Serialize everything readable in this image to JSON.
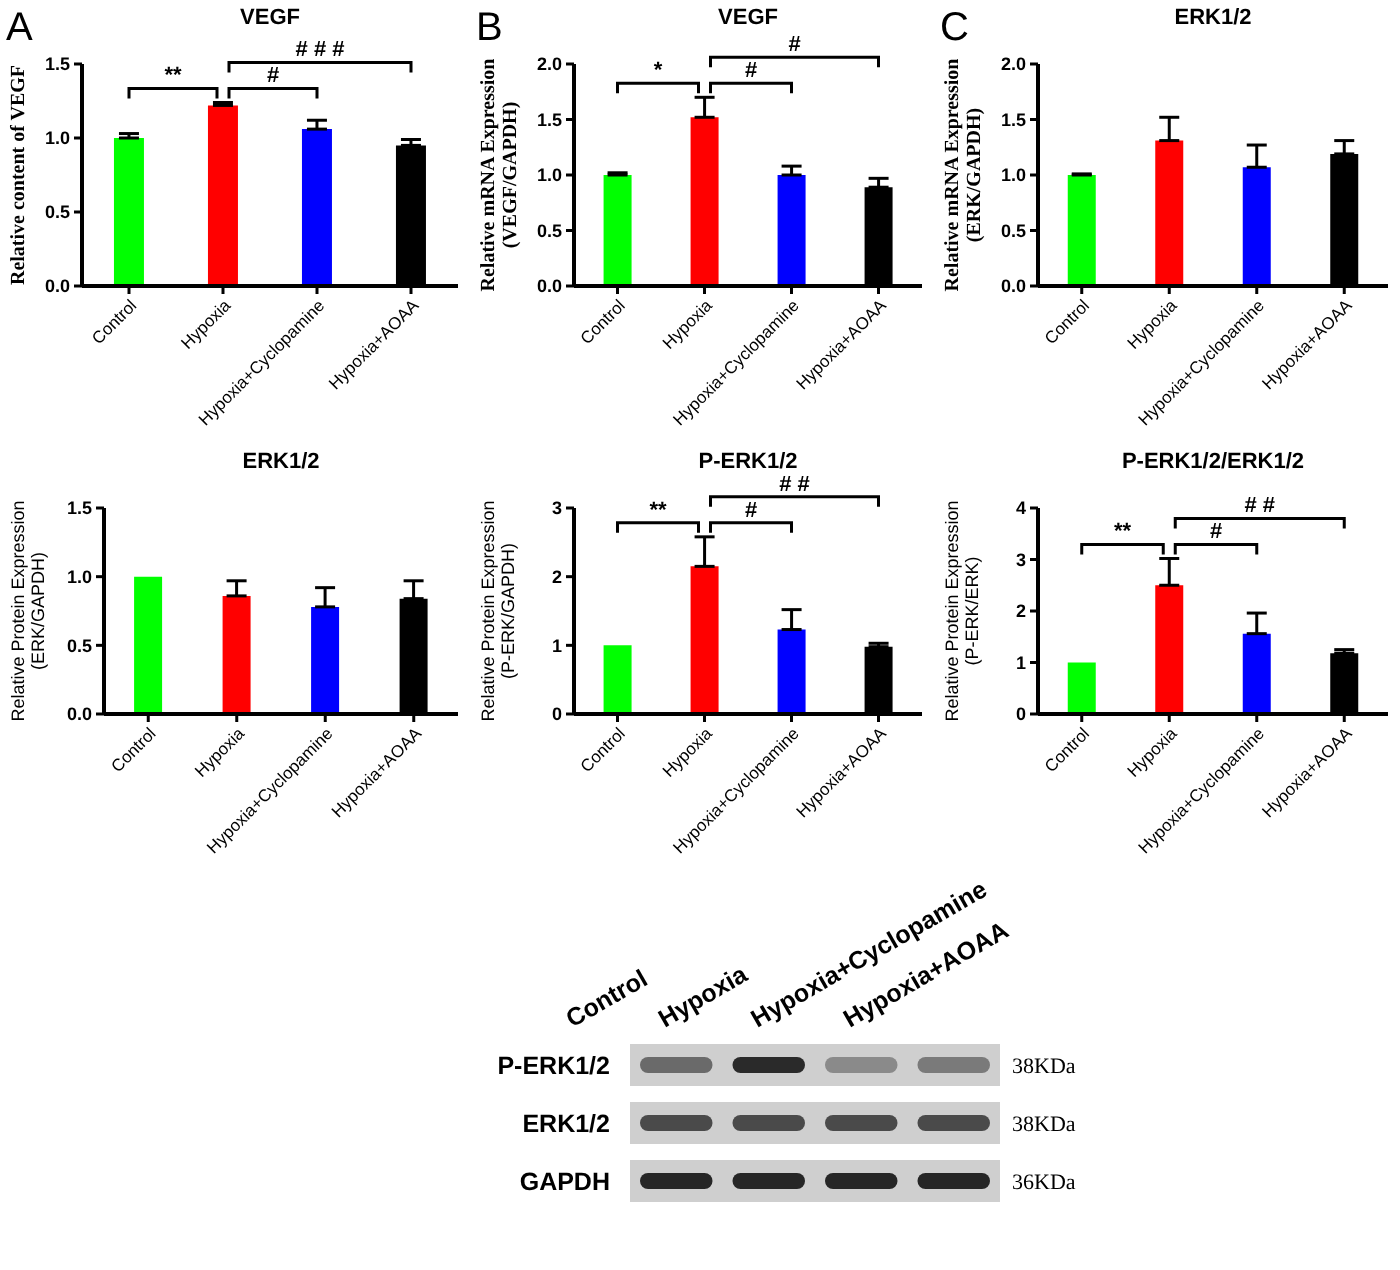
{
  "chart_data": [
    {
      "type": "bar",
      "title": "VEGF",
      "ylabel": "Relative content of VEGF",
      "categories": [
        "Control",
        "Hypoxia",
        "Hypoxia+Cyclopamine",
        "Hypoxia+AOAA"
      ],
      "values": [
        1.0,
        1.22,
        1.06,
        0.95
      ],
      "colors": [
        "#00ff00",
        "#ff0000",
        "#0000ff",
        "#000000"
      ],
      "errors": [
        0.03,
        0.02,
        0.06,
        0.04
      ],
      "ylim": [
        0,
        1.5
      ],
      "yticks": [
        {
          "value": 0,
          "label": "0.0"
        },
        0.5,
        {
          "value": 1,
          "label": "1.0"
        },
        1.5
      ],
      "annotations": [
        "A",
        "**",
        "#",
        "# # #"
      ]
    },
    {
      "type": "bar",
      "title": "VEGF",
      "ylabel": "Relative mRNA Expression\n(VEGF/GAPDH)",
      "categories": [
        "Control",
        "Hypoxia",
        "Hypoxia+Cyclopamine",
        "Hypoxia+AOAA"
      ],
      "values": [
        1.0,
        1.52,
        1.0,
        0.89
      ],
      "colors": [
        "#00ff00",
        "#ff0000",
        "#0000ff",
        "#000000"
      ],
      "errors": [
        0.02,
        0.18,
        0.08,
        0.08
      ],
      "ylim": [
        0,
        2
      ],
      "yticks": [
        {
          "value": 0,
          "label": "0.0"
        },
        0.5,
        {
          "value": 1,
          "label": "1.0"
        },
        1.5,
        {
          "value": 2,
          "label": "2.0"
        }
      ],
      "annotations": [
        "B",
        "*",
        "#",
        "#"
      ]
    },
    {
      "type": "bar",
      "title": "ERK1/2",
      "ylabel": "Relative mRNA Expression\n(ERK/GAPDH)",
      "categories": [
        "Control",
        "Hypoxia",
        "Hypoxia+Cyclopamine",
        "Hypoxia+AOAA"
      ],
      "values": [
        1.0,
        1.31,
        1.07,
        1.19
      ],
      "colors": [
        "#00ff00",
        "#ff0000",
        "#0000ff",
        "#000000"
      ],
      "errors": [
        0.01,
        0.21,
        0.2,
        0.12
      ],
      "ylim": [
        0,
        2
      ],
      "yticks": [
        {
          "value": 0,
          "label": "0.0"
        },
        0.5,
        {
          "value": 1,
          "label": "1.0"
        },
        1.5,
        {
          "value": 2,
          "label": "2.0"
        }
      ],
      "annotations": [
        "C"
      ]
    },
    {
      "type": "bar",
      "title": "ERK1/2",
      "ylabel": "Relative Protein Expression\n(ERK/GAPDH)",
      "categories": [
        "Control",
        "Hypoxia",
        "Hypoxia+Cyclopamine",
        "Hypoxia+AOAA"
      ],
      "values": [
        1.0,
        0.86,
        0.78,
        0.84
      ],
      "colors": [
        "#00ff00",
        "#ff0000",
        "#0000ff",
        "#000000"
      ],
      "errors": [
        null,
        0.11,
        0.14,
        0.13
      ],
      "ylim": [
        0,
        1.5
      ],
      "yticks": [
        {
          "value": 0,
          "label": "0.0"
        },
        0.5,
        {
          "value": 1,
          "label": "1.0"
        },
        1.5
      ]
    },
    {
      "type": "bar",
      "title": "P-ERK1/2",
      "ylabel": "Relative Protein Expression\n(P-ERK/GAPDH)",
      "categories": [
        "Control",
        "Hypoxia",
        "Hypoxia+Cyclopamine",
        "Hypoxia+AOAA"
      ],
      "values": [
        1.0,
        2.15,
        1.23,
        0.98
      ],
      "colors": [
        "#00ff00",
        "#ff0000",
        "#0000ff",
        "#000000"
      ],
      "errors": [
        null,
        0.43,
        0.29,
        0.05
      ],
      "ylim": [
        0,
        3
      ],
      "yticks": [
        0,
        1,
        2,
        3
      ],
      "annotations": [
        "**",
        "#",
        "# #"
      ]
    },
    {
      "type": "bar",
      "title": "P-ERK1/2/ERK1/2",
      "ylabel": "Relative Protein Expression\n(P-ERK/ERK)",
      "categories": [
        "Control",
        "Hypoxia",
        "Hypoxia+Cyclopamine",
        "Hypoxia+AOAA"
      ],
      "values": [
        1.0,
        2.5,
        1.56,
        1.18
      ],
      "colors": [
        "#00ff00",
        "#ff0000",
        "#0000ff",
        "#000000"
      ],
      "errors": [
        null,
        0.52,
        0.4,
        0.07
      ],
      "ylim": [
        0,
        4
      ],
      "yticks": [
        0,
        1,
        2,
        3,
        4
      ],
      "annotations": [
        "**",
        "#",
        "# #"
      ]
    },
    {
      "type": "other",
      "categories": [
        "Control",
        "Hypoxia",
        "Hypoxia+Cyclopamine",
        "Hypoxia+AOAA"
      ],
      "y_categories": [
        "P-ERK1/2",
        "ERK1/2",
        "GAPDH"
      ],
      "y2_categories": [
        "38KDa",
        "38KDa",
        "36KDa"
      ]
    }
  ]
}
